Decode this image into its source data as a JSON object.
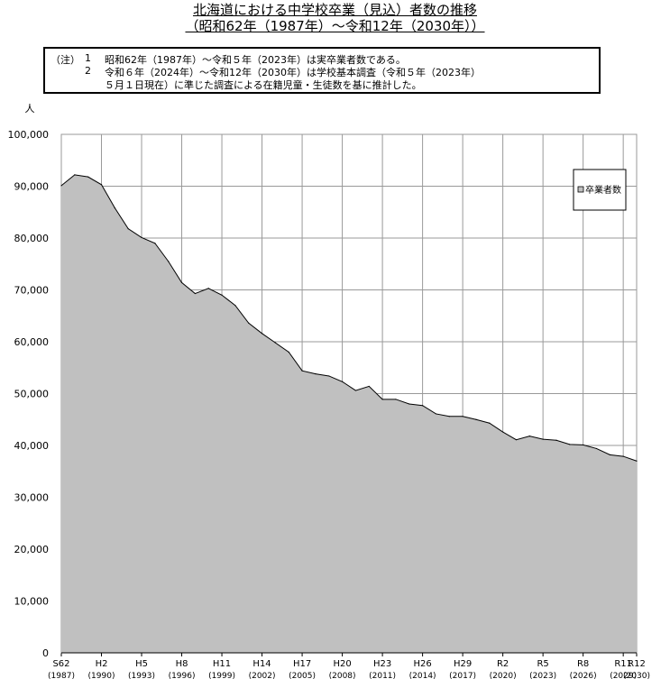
{
  "header": {
    "title_line1": "北海道における中学校卒業（見込）者数の推移",
    "title_line2": "（昭和62年（1987年）～令和12年（2030年））"
  },
  "note": {
    "marker": "（注）",
    "item1_num": "1",
    "item1_text": "昭和62年（1987年）～令和５年（2023年）は実卒業者数である。",
    "item2_num": "2",
    "item2_text": "令和６年（2024年）～令和12年（2030年）は学校基本調査（令和５年（2023年）",
    "item2_text_cont": "５月１日現在）に準じた調査による在籍児童・生徒数を基に推計した。"
  },
  "colors": {
    "area_fill": "#c0c0c0",
    "line": "#000000",
    "grid": "#999999"
  },
  "chart_data": {
    "type": "area",
    "y_unit": "人",
    "ylim": [
      0,
      100000
    ],
    "yticks": [
      0,
      10000,
      20000,
      30000,
      40000,
      50000,
      60000,
      70000,
      80000,
      90000,
      100000
    ],
    "ytick_labels": [
      "0",
      "10,000",
      "20,000",
      "30,000",
      "40,000",
      "50,000",
      "60,000",
      "70,000",
      "80,000",
      "90,000",
      "100,000"
    ],
    "grid": true,
    "legend_position": "top-right",
    "x": [
      1987,
      1988,
      1989,
      1990,
      1991,
      1992,
      1993,
      1994,
      1995,
      1996,
      1997,
      1998,
      1999,
      2000,
      2001,
      2002,
      2003,
      2004,
      2005,
      2006,
      2007,
      2008,
      2009,
      2010,
      2011,
      2012,
      2013,
      2014,
      2015,
      2016,
      2017,
      2018,
      2019,
      2020,
      2021,
      2022,
      2023,
      2024,
      2025,
      2026,
      2027,
      2028,
      2029,
      2030
    ],
    "xticks": [
      {
        "era": "S62",
        "year": "(1987)",
        "x": 1987
      },
      {
        "era": "H2",
        "year": "(1990)",
        "x": 1990
      },
      {
        "era": "H5",
        "year": "(1993)",
        "x": 1993
      },
      {
        "era": "H8",
        "year": "(1996)",
        "x": 1996
      },
      {
        "era": "H11",
        "year": "(1999)",
        "x": 1999
      },
      {
        "era": "H14",
        "year": "(2002)",
        "x": 2002
      },
      {
        "era": "H17",
        "year": "(2005)",
        "x": 2005
      },
      {
        "era": "H20",
        "year": "(2008)",
        "x": 2008
      },
      {
        "era": "H23",
        "year": "(2011)",
        "x": 2011
      },
      {
        "era": "H26",
        "year": "(2014)",
        "x": 2014
      },
      {
        "era": "H29",
        "year": "(2017)",
        "x": 2017
      },
      {
        "era": "R2",
        "year": "(2020)",
        "x": 2020
      },
      {
        "era": "R5",
        "year": "(2023)",
        "x": 2023
      },
      {
        "era": "R8",
        "year": "(2026)",
        "x": 2026
      },
      {
        "era": "R11",
        "year": "(2029)",
        "x": 2029
      },
      {
        "era": "R12",
        "year": "(2030)",
        "x": 2030
      }
    ],
    "series": [
      {
        "name": "卒業者数",
        "values": [
          90100,
          92200,
          91800,
          90300,
          85800,
          81800,
          80100,
          79000,
          75500,
          71400,
          69300,
          70300,
          69000,
          67000,
          63600,
          61600,
          59800,
          58000,
          54400,
          53800,
          53400,
          52300,
          50600,
          51400,
          48900,
          48900,
          48000,
          47700,
          46100,
          45600,
          45600,
          45000,
          44300,
          42600,
          41100,
          41800,
          41200,
          41000,
          40200,
          40100,
          39400,
          38200,
          37900,
          37000
        ]
      }
    ]
  }
}
